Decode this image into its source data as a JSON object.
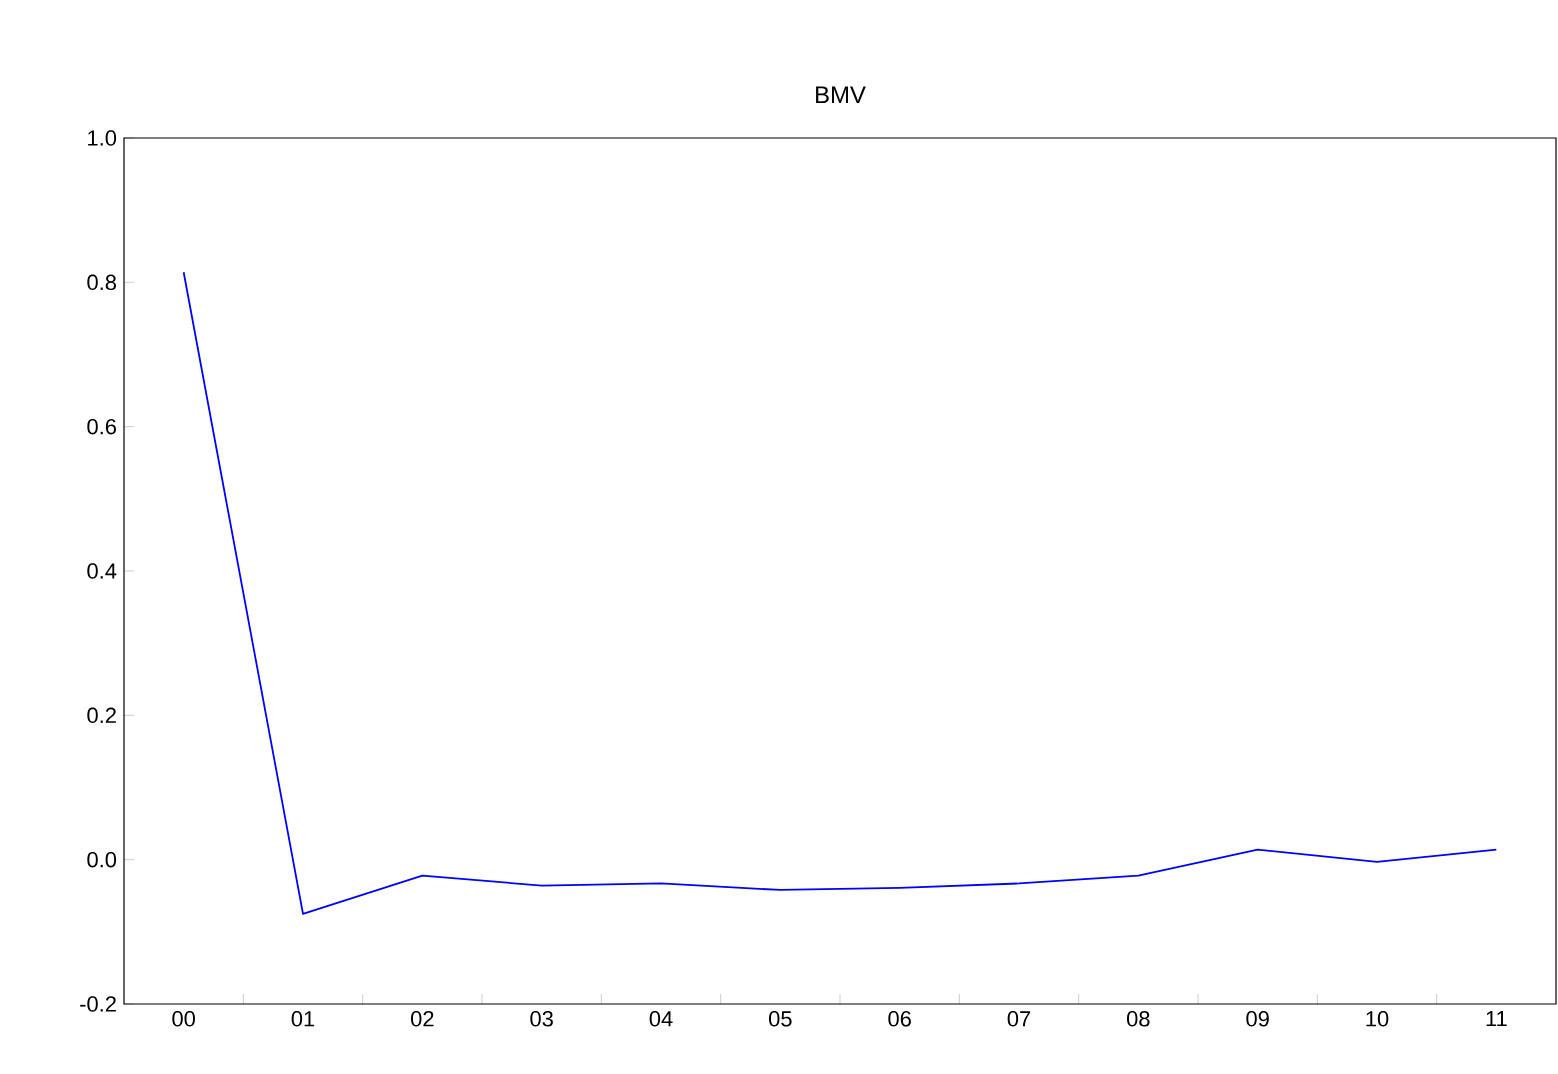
{
  "chart_data": {
    "type": "line",
    "title": "BMV",
    "categories": [
      "00",
      "01",
      "02",
      "03",
      "04",
      "05",
      "06",
      "07",
      "08",
      "09",
      "10",
      "11"
    ],
    "series": [
      {
        "color": "#0000ff",
        "values": [
          0.814,
          -0.075,
          -0.022,
          -0.036,
          -0.033,
          -0.042,
          -0.039,
          -0.033,
          -0.022,
          0.014,
          -0.003,
          0.014
        ]
      }
    ],
    "ylim": [
      -0.2,
      1.0
    ],
    "yticks": [
      {
        "value": -0.2,
        "label": "-0.2"
      },
      {
        "value": 0,
        "label": "0.0"
      },
      {
        "value": 0.2,
        "label": "0.2"
      },
      {
        "value": 0.4,
        "label": "0.4"
      },
      {
        "value": 0.6,
        "label": "0.6"
      },
      {
        "value": 0.8,
        "label": "0.8"
      },
      {
        "value": 1,
        "label": "1.0"
      }
    ]
  }
}
